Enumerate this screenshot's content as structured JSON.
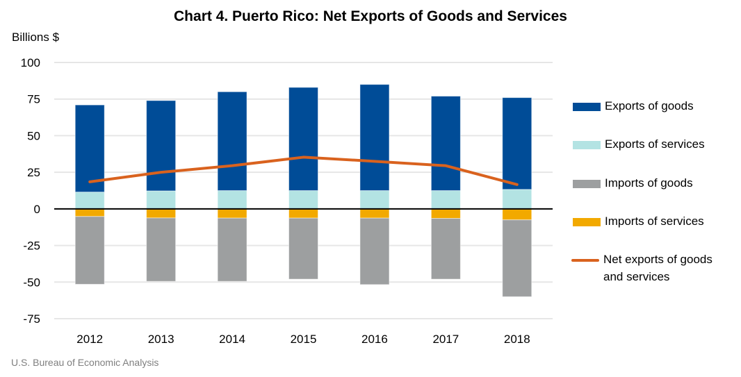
{
  "chart_data": {
    "type": "bar",
    "stacked": true,
    "title": "Chart 4. Puerto Rico: Net Exports of Goods and Services",
    "ylabel": "Billions $",
    "xlabel": "",
    "source": "U.S. Bureau of Economic Analysis",
    "categories": [
      "2012",
      "2013",
      "2014",
      "2015",
      "2016",
      "2017",
      "2018"
    ],
    "ylim": [
      -75,
      100
    ],
    "yticks": [
      100,
      75,
      50,
      25,
      0,
      -25,
      -50,
      -75
    ],
    "grid": true,
    "legend_position": "right",
    "series": [
      {
        "name": "Exports of services",
        "type": "bar",
        "color": "#b3e3e3",
        "values": [
          11.5,
          12.3,
          12.5,
          12.5,
          12.5,
          12.5,
          13.3
        ]
      },
      {
        "name": "Exports of goods",
        "type": "bar",
        "color": "#004c97",
        "values": [
          59.5,
          61.7,
          67.5,
          70.5,
          72.5,
          64.5,
          62.7
        ]
      },
      {
        "name": "Imports of services",
        "type": "bar",
        "color": "#f2a900",
        "values": [
          -5.2,
          -6.2,
          -6.3,
          -6.3,
          -6.3,
          -6.5,
          -7.5
        ]
      },
      {
        "name": "Imports of goods",
        "type": "bar",
        "color": "#9d9fa0",
        "values": [
          -46.3,
          -43.3,
          -43.2,
          -41.7,
          -45.4,
          -41.5,
          -52.5
        ]
      },
      {
        "name": "Net exports of goods and services",
        "type": "line",
        "color": "#d9621e",
        "values": [
          18.5,
          25.0,
          29.5,
          35.3,
          32.5,
          29.5,
          16.6
        ]
      }
    ],
    "legend": [
      {
        "label": "Exports of goods",
        "color": "#004c97",
        "kind": "bar"
      },
      {
        "label": "Exports of services",
        "color": "#b3e3e3",
        "kind": "bar"
      },
      {
        "label": "Imports of goods",
        "color": "#9d9fa0",
        "kind": "bar"
      },
      {
        "label": "Imports of services",
        "color": "#f2a900",
        "kind": "bar"
      },
      {
        "label": "Net exports of goods and services",
        "color": "#d9621e",
        "kind": "line"
      }
    ]
  }
}
